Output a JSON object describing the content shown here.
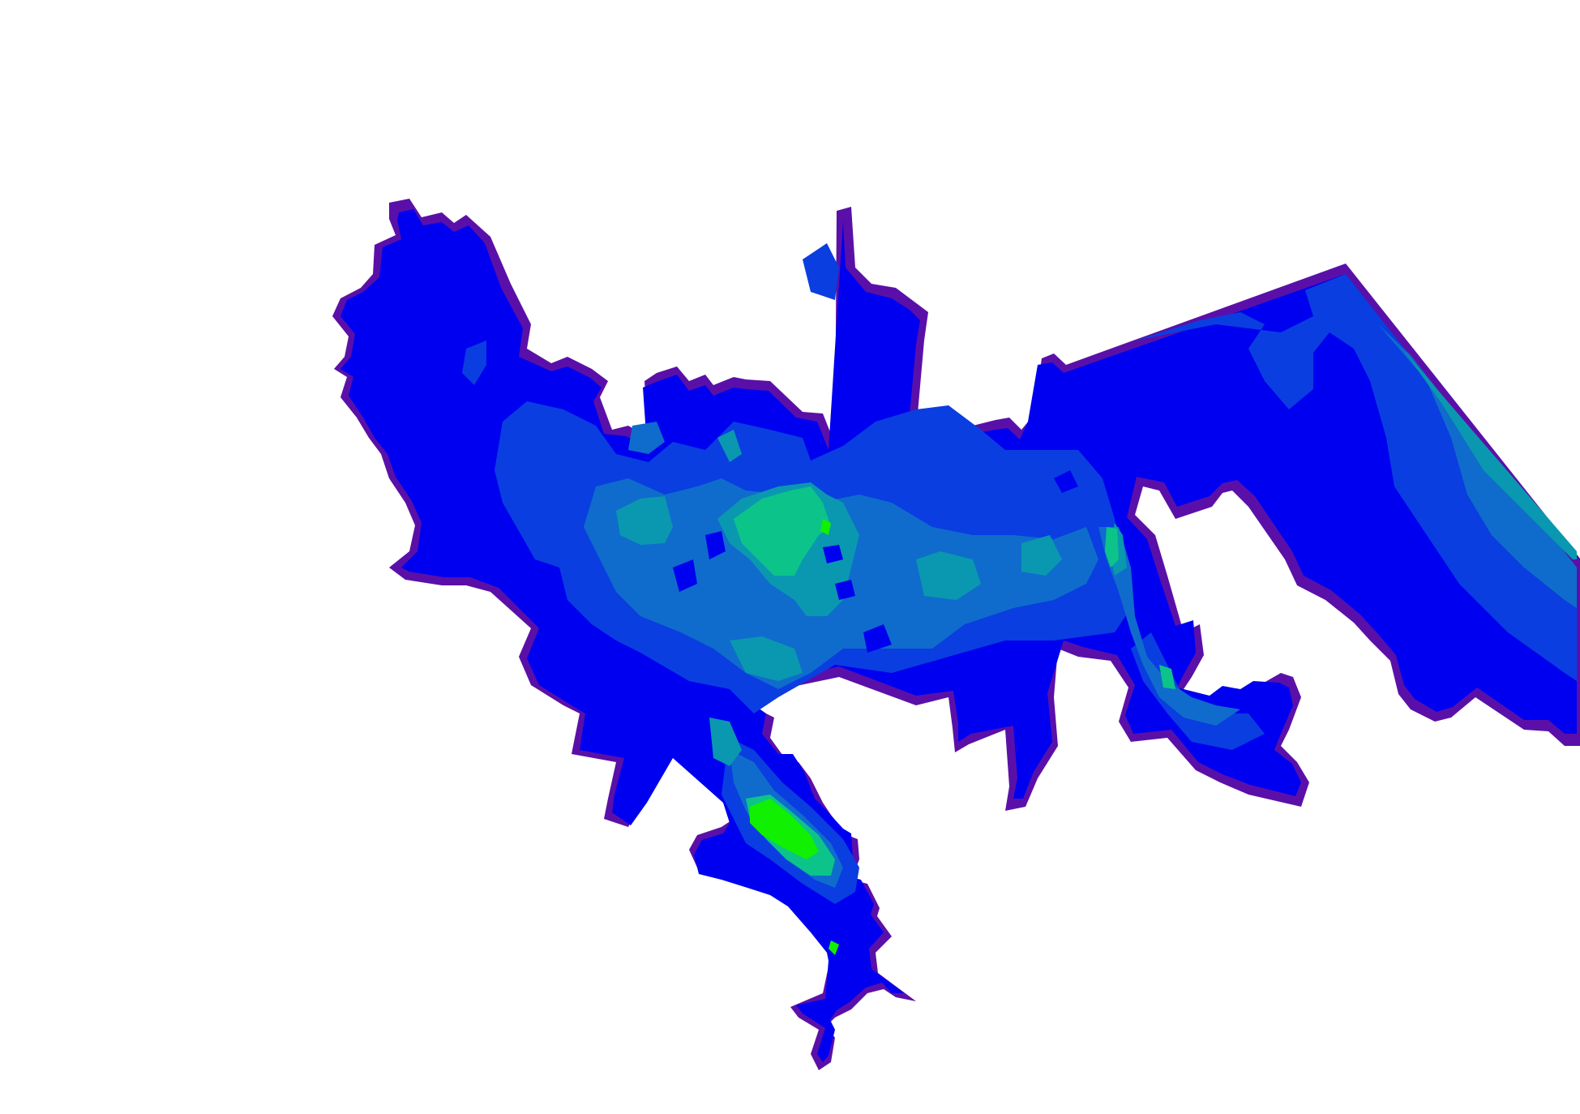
{
  "map": {
    "kind": "filled-contour-map",
    "background": "#ffffff",
    "palette": {
      "edge": "#5a10a8",
      "level_1": "#0000f0",
      "level_2": "#0a3ee0",
      "level_3": "#0f6ccc",
      "level_4": "#0a98b0",
      "level_5": "#0cc48a",
      "level_6": "#10f000"
    }
  }
}
